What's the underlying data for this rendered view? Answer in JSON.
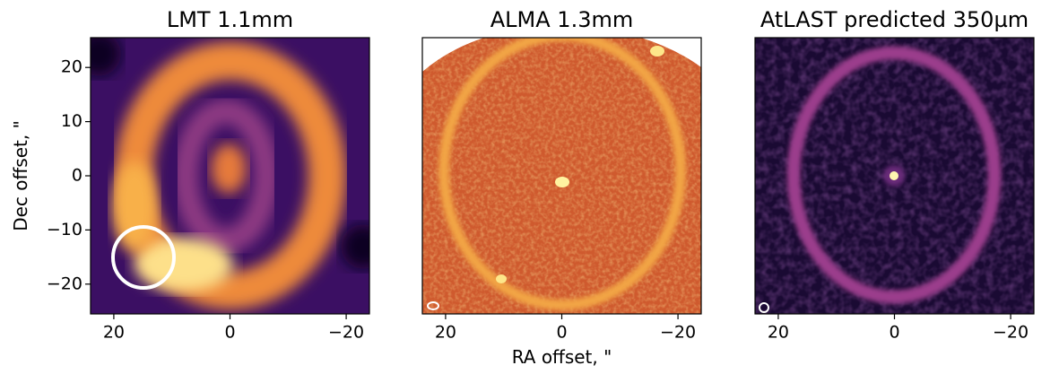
{
  "chart_data": [
    {
      "type": "image",
      "title": "LMT 1.1mm",
      "ylabel": "Dec offset, \"",
      "xlim": [
        24,
        -24
      ],
      "ylim": [
        -25.5,
        25.5
      ],
      "xticks": [
        20,
        0,
        {
          "value": -20,
          "label": "−20"
        }
      ],
      "yticks": [
        20,
        10,
        0,
        {
          "value": -10,
          "label": "−10"
        },
        {
          "value": -20,
          "label": "−20"
        }
      ]
    },
    {
      "type": "image",
      "title": "ALMA 1.3mm",
      "xlabel": "RA offset, \"",
      "xlim": [
        24,
        -24
      ],
      "ylim": [
        -25.5,
        25.5
      ],
      "xticks": [
        20,
        0,
        {
          "value": -20,
          "label": "−20"
        }
      ]
    },
    {
      "type": "image",
      "title": "AtLAST predicted 350µm",
      "xlim": [
        24,
        -24
      ],
      "ylim": [
        -25.5,
        25.5
      ],
      "xticks": [
        20,
        0,
        {
          "value": -20,
          "label": "−20"
        }
      ]
    }
  ]
}
